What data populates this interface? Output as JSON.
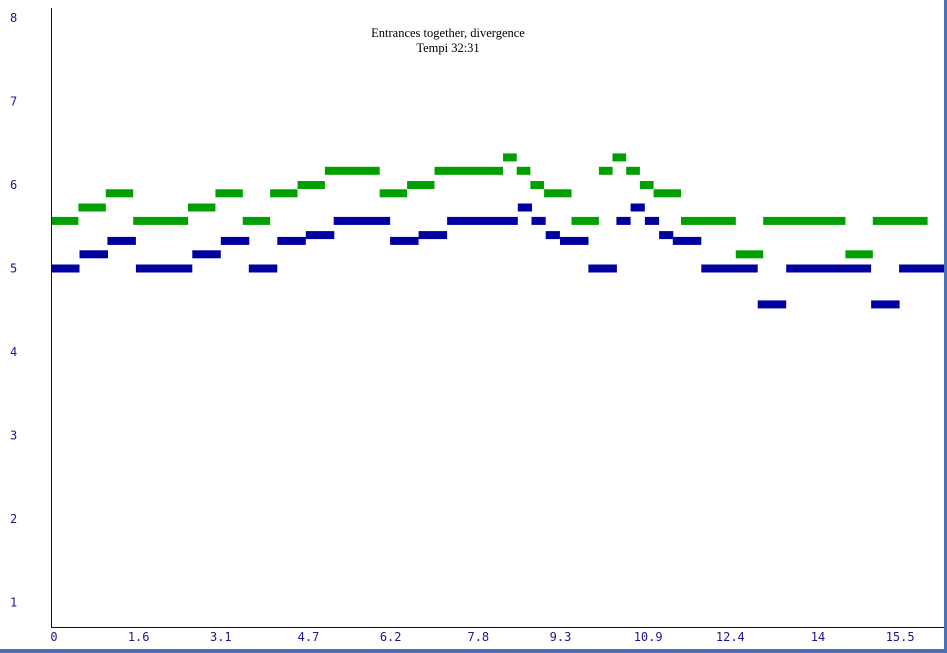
{
  "chart_data": {
    "type": "piano-roll",
    "title": "Entrances together, divergence",
    "subtitle": "Tempi 32:31",
    "x_ticks": [
      "0",
      "1.6",
      "3.1",
      "4.7",
      "6.2",
      "7.8",
      "9.3",
      "10.9",
      "12.4",
      "14",
      "15.5"
    ],
    "y_ticks": [
      "1",
      "2",
      "3",
      "4",
      "5",
      "6",
      "7",
      "8"
    ],
    "xlim": [
      0,
      16.3
    ],
    "ylim": [
      0.8,
      8.1
    ],
    "grid": false,
    "series": [
      {
        "color": "#00a000",
        "notes": [
          [
            0.0,
            0.5,
            5.57
          ],
          [
            0.5,
            0.5,
            5.73
          ],
          [
            1.0,
            0.5,
            5.9
          ],
          [
            1.5,
            1.0,
            5.57
          ],
          [
            2.5,
            0.5,
            5.73
          ],
          [
            3.0,
            0.5,
            5.9
          ],
          [
            3.5,
            0.5,
            5.57
          ],
          [
            4.0,
            0.5,
            5.9
          ],
          [
            4.5,
            0.5,
            6.0
          ],
          [
            5.0,
            1.0,
            6.17
          ],
          [
            6.0,
            0.5,
            5.9
          ],
          [
            6.5,
            0.5,
            6.0
          ],
          [
            7.0,
            1.25,
            6.17
          ],
          [
            8.25,
            0.25,
            6.33
          ],
          [
            8.5,
            0.25,
            6.17
          ],
          [
            8.75,
            0.25,
            6.0
          ],
          [
            9.0,
            0.5,
            5.9
          ],
          [
            9.5,
            0.5,
            5.57
          ],
          [
            10.0,
            0.25,
            6.17
          ],
          [
            10.25,
            0.25,
            6.33
          ],
          [
            10.5,
            0.25,
            6.17
          ],
          [
            10.75,
            0.25,
            6.0
          ],
          [
            11.0,
            0.5,
            5.9
          ],
          [
            11.5,
            1.0,
            5.57
          ],
          [
            12.5,
            0.5,
            5.17
          ],
          [
            13.0,
            1.5,
            5.57
          ],
          [
            14.5,
            0.5,
            5.17
          ],
          [
            15.0,
            1.0,
            5.57
          ]
        ]
      },
      {
        "color": "#0000a0",
        "notes": [
          [
            0.0,
            0.52,
            5.0
          ],
          [
            0.52,
            0.52,
            5.17
          ],
          [
            1.03,
            0.52,
            5.33
          ],
          [
            1.55,
            1.03,
            5.0
          ],
          [
            2.58,
            0.52,
            5.17
          ],
          [
            3.1,
            0.52,
            5.33
          ],
          [
            3.61,
            0.52,
            5.0
          ],
          [
            4.13,
            0.52,
            5.33
          ],
          [
            4.65,
            0.52,
            5.4
          ],
          [
            5.16,
            1.03,
            5.57
          ],
          [
            6.19,
            0.52,
            5.33
          ],
          [
            6.71,
            0.52,
            5.4
          ],
          [
            7.23,
            1.29,
            5.57
          ],
          [
            8.52,
            0.26,
            5.73
          ],
          [
            8.77,
            0.26,
            5.57
          ],
          [
            9.03,
            0.26,
            5.4
          ],
          [
            9.29,
            0.52,
            5.33
          ],
          [
            9.81,
            0.52,
            5.0
          ],
          [
            10.32,
            0.26,
            5.57
          ],
          [
            10.58,
            0.26,
            5.73
          ],
          [
            10.84,
            0.26,
            5.57
          ],
          [
            11.1,
            0.26,
            5.4
          ],
          [
            11.35,
            0.52,
            5.33
          ],
          [
            11.87,
            1.03,
            5.0
          ],
          [
            12.9,
            0.52,
            4.57
          ],
          [
            13.42,
            1.55,
            5.0
          ],
          [
            14.97,
            0.52,
            4.57
          ],
          [
            15.48,
            1.03,
            5.0
          ]
        ]
      }
    ]
  }
}
